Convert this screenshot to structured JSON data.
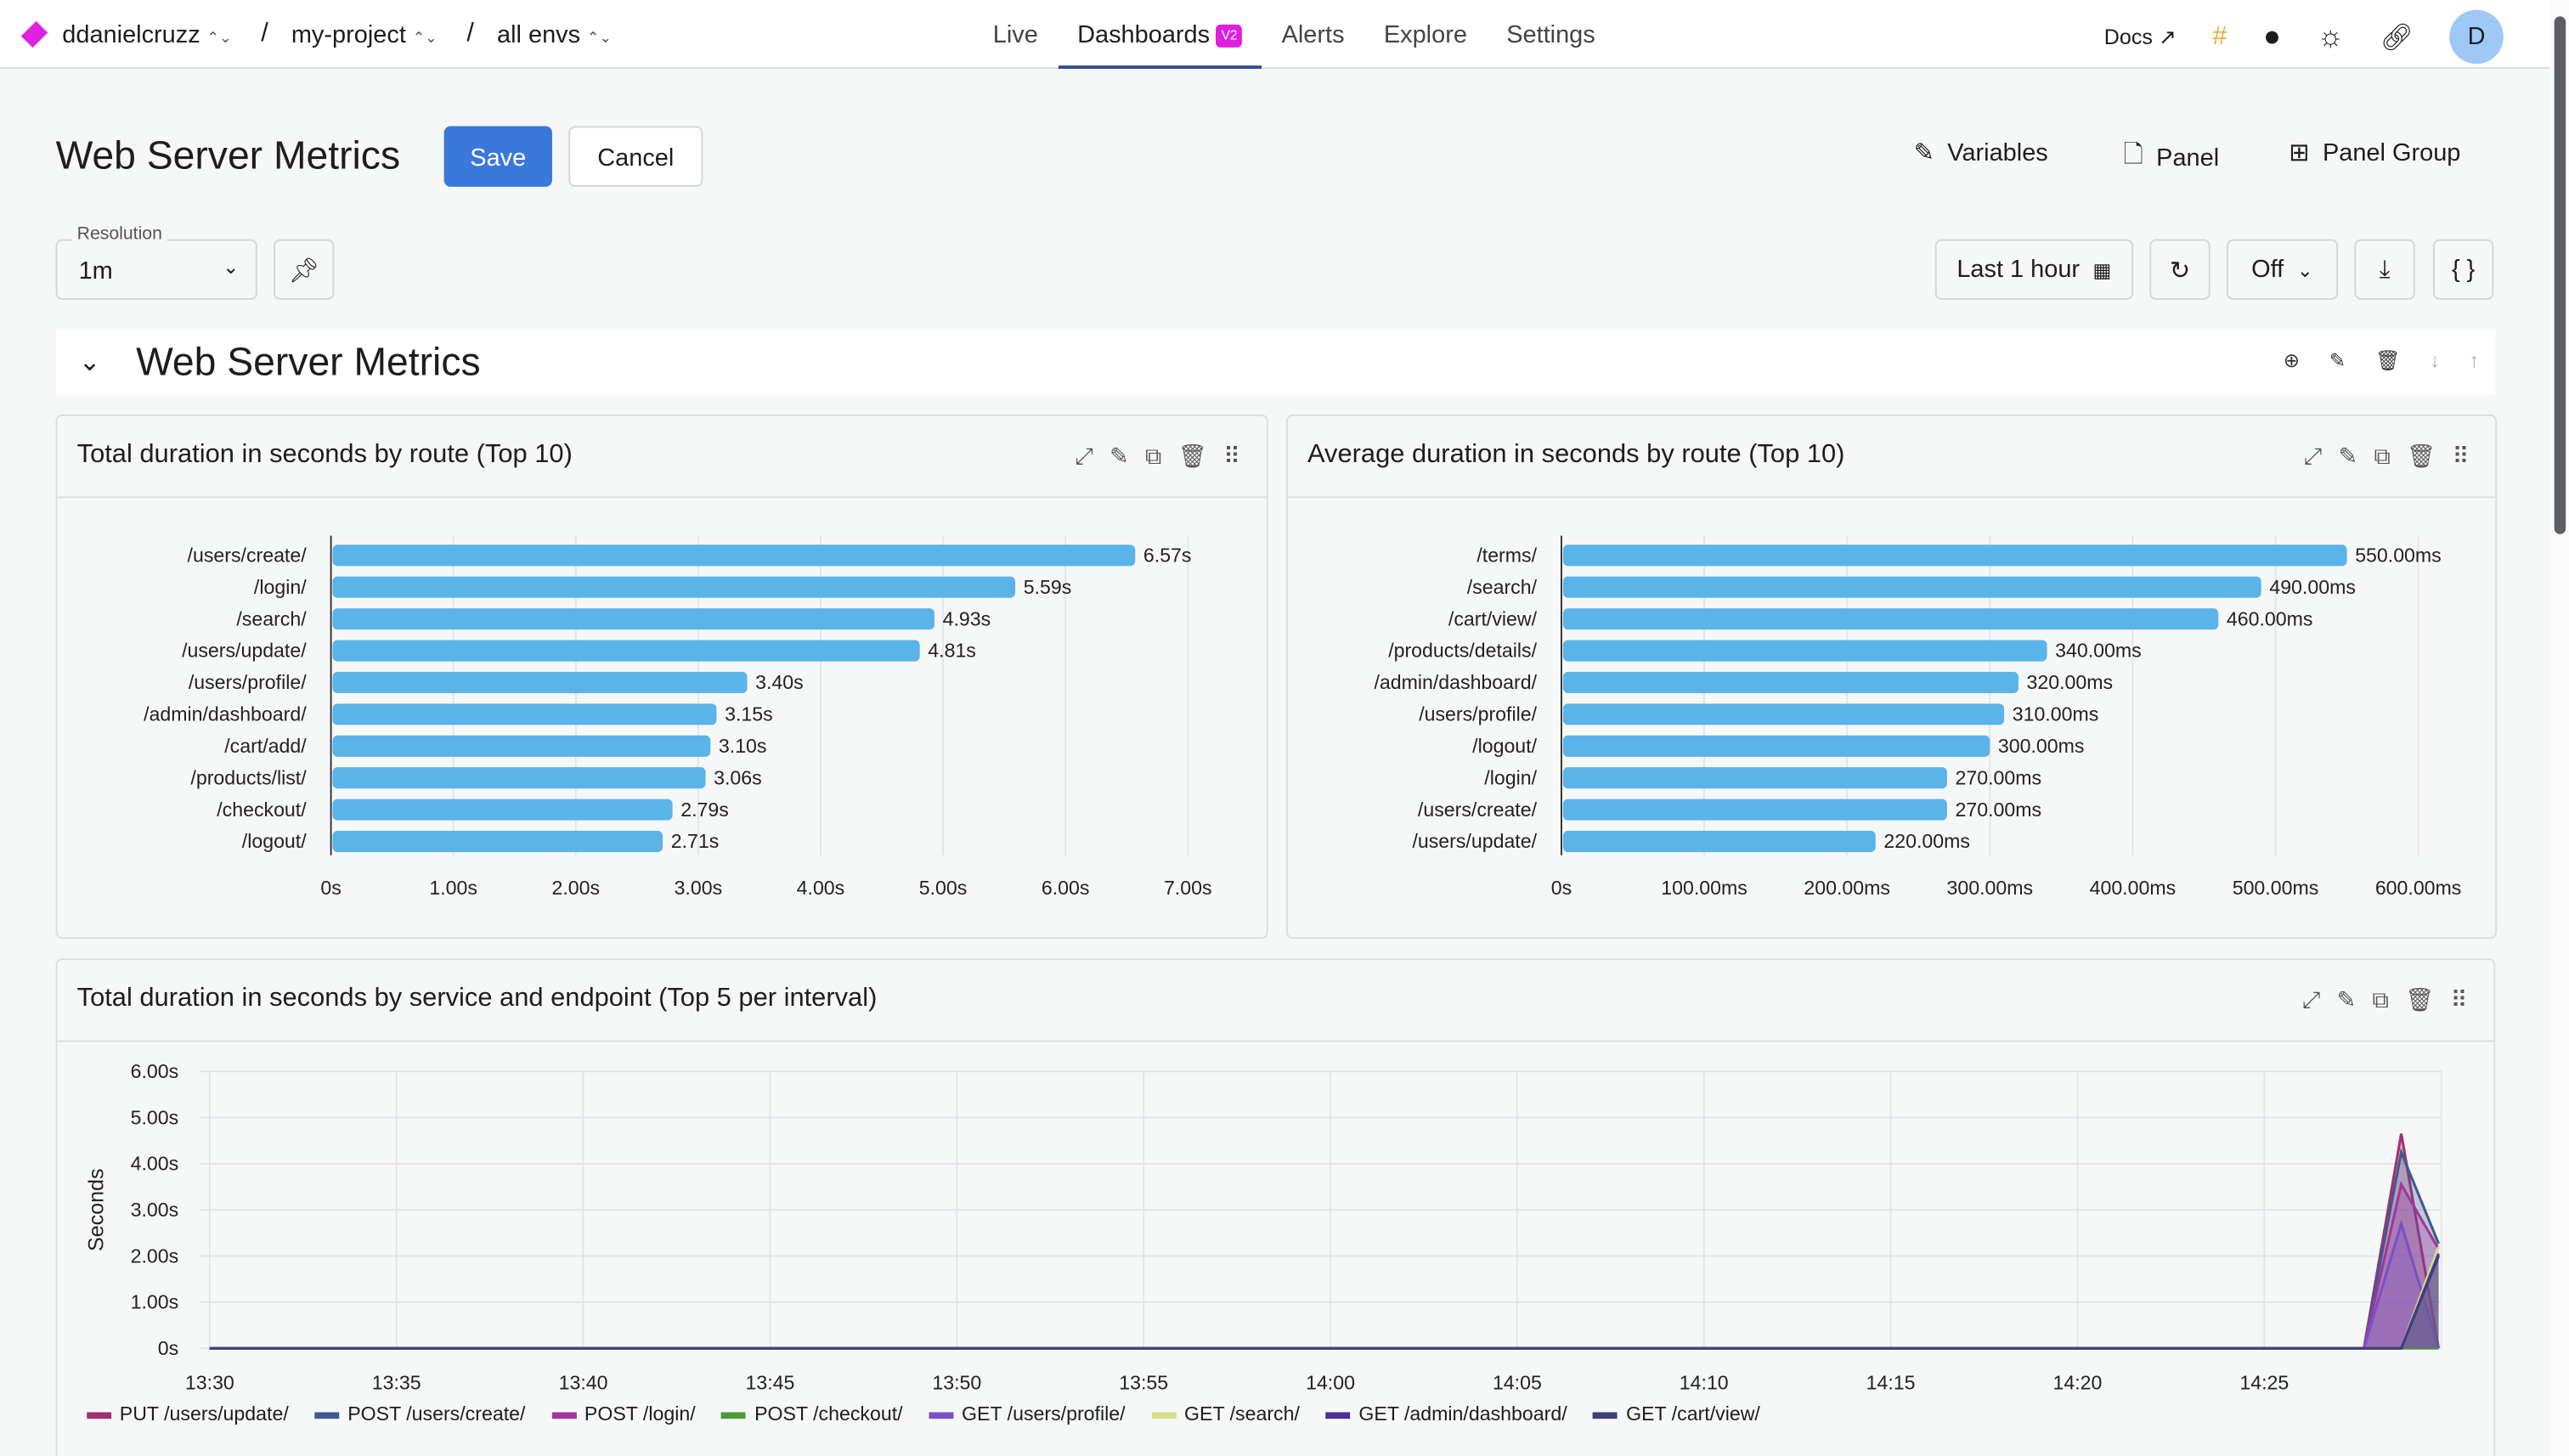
{
  "breadcrumb": {
    "org": "ddanielcruzz",
    "project": "my-project",
    "env": "all envs"
  },
  "nav": {
    "tabs": [
      "Live",
      "Dashboards",
      "Alerts",
      "Explore",
      "Settings"
    ],
    "active": "Dashboards",
    "badge": "V2"
  },
  "topright": {
    "docs": "Docs",
    "avatar": "D"
  },
  "header": {
    "title": "Web Server Metrics",
    "save": "Save",
    "cancel": "Cancel",
    "variables": "Variables",
    "panel": "Panel",
    "panel_group": "Panel Group"
  },
  "controls": {
    "resolution_label": "Resolution",
    "resolution": "1m",
    "time_range": "Last 1 hour",
    "refresh": "Off",
    "json_btn": "{ }"
  },
  "group": {
    "title": "Web Server Metrics"
  },
  "colors": {
    "accent": "#3a78dc",
    "bar": "#5ab4ea",
    "brand": "#e020e0"
  },
  "chart_data": [
    {
      "type": "bar",
      "orientation": "horizontal",
      "title": "Total duration in seconds by route (Top 10)",
      "categories": [
        "/users/create/",
        "/login/",
        "/search/",
        "/users/update/",
        "/users/profile/",
        "/admin/dashboard/",
        "/cart/add/",
        "/products/list/",
        "/checkout/",
        "/logout/"
      ],
      "values": [
        6.57,
        5.59,
        4.93,
        4.81,
        3.4,
        3.15,
        3.1,
        3.06,
        2.79,
        2.71
      ],
      "labels": [
        "6.57s",
        "5.59s",
        "4.93s",
        "4.81s",
        "3.40s",
        "3.15s",
        "3.10s",
        "3.06s",
        "2.79s",
        "2.71s"
      ],
      "xticks": [
        "0s",
        "1.00s",
        "2.00s",
        "3.00s",
        "4.00s",
        "5.00s",
        "6.00s",
        "7.00s"
      ],
      "xlim": [
        0,
        7
      ],
      "grid": true
    },
    {
      "type": "bar",
      "orientation": "horizontal",
      "title": "Average duration in seconds by route (Top 10)",
      "categories": [
        "/terms/",
        "/search/",
        "/cart/view/",
        "/products/details/",
        "/admin/dashboard/",
        "/users/profile/",
        "/logout/",
        "/login/",
        "/users/create/",
        "/users/update/"
      ],
      "values": [
        550,
        490,
        460,
        340,
        320,
        310,
        300,
        270,
        270,
        220
      ],
      "labels": [
        "550.00ms",
        "490.00ms",
        "460.00ms",
        "340.00ms",
        "320.00ms",
        "310.00ms",
        "300.00ms",
        "270.00ms",
        "270.00ms",
        "220.00ms"
      ],
      "xticks": [
        "0s",
        "100.00ms",
        "200.00ms",
        "300.00ms",
        "400.00ms",
        "500.00ms",
        "600.00ms"
      ],
      "xlim": [
        0,
        600
      ],
      "grid": true
    },
    {
      "type": "area",
      "title": "Total duration in seconds by service and endpoint (Top 5 per interval)",
      "ylabel": "Seconds",
      "ylim": [
        0,
        6
      ],
      "yticks": [
        "0s",
        "1.00s",
        "2.00s",
        "3.00s",
        "4.00s",
        "5.00s",
        "6.00s"
      ],
      "xticks": [
        "13:30",
        "13:35",
        "13:40",
        "13:45",
        "13:50",
        "13:55",
        "14:00",
        "14:05",
        "14:10",
        "14:15",
        "14:20",
        "14:25"
      ],
      "x": [
        "13:30:00",
        "14:27:40",
        "14:28:40",
        "14:29:40"
      ],
      "legend": "bottom",
      "grid": true,
      "series": [
        {
          "name": "PUT /users/update/",
          "color": "#a3306e",
          "values": [
            0,
            0,
            4.65,
            0
          ]
        },
        {
          "name": "POST /users/create/",
          "color": "#3f5a8f",
          "values": [
            0,
            0,
            4.25,
            2.27
          ]
        },
        {
          "name": "POST /login/",
          "color": "#a2369a",
          "values": [
            0,
            0,
            3.55,
            2.15
          ]
        },
        {
          "name": "POST /checkout/",
          "color": "#4e9a38",
          "values": [
            0,
            0,
            0,
            0
          ]
        },
        {
          "name": "GET /users/profile/",
          "color": "#7b4fc9",
          "values": [
            0,
            0,
            2.7,
            0
          ]
        },
        {
          "name": "GET /search/",
          "color": "#d6e08a",
          "values": [
            0,
            0,
            0,
            2.2
          ]
        },
        {
          "name": "GET /admin/dashboard/",
          "color": "#4b2f9a",
          "values": [
            0,
            0,
            0,
            2.0
          ]
        },
        {
          "name": "GET /cart/view/",
          "color": "#3d3f7a",
          "values": [
            0,
            0,
            0,
            2.05
          ]
        }
      ]
    }
  ]
}
